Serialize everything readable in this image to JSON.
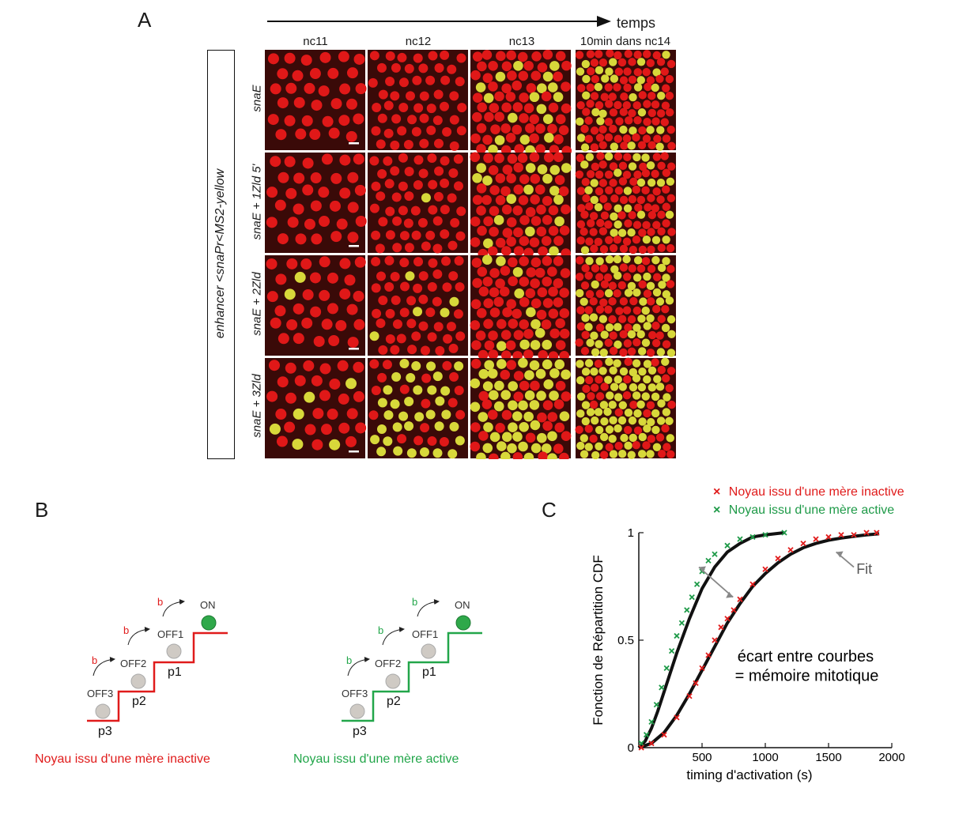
{
  "panel_a": {
    "letter": "A",
    "time_label": "temps",
    "columns": [
      "nc11",
      "nc12",
      "nc13",
      "10min dans nc14"
    ],
    "construct_label": "enhancer <snaPr<MS2-yellow",
    "rows": [
      {
        "label": "snaE",
        "active_fraction": [
          0.0,
          0.0,
          0.12,
          0.22
        ]
      },
      {
        "label": "snaE + 1Zld 5'",
        "active_fraction": [
          0.0,
          0.01,
          0.2,
          0.3
        ]
      },
      {
        "label": "snaE + 2Zld",
        "active_fraction": [
          0.01,
          0.06,
          0.18,
          0.45
        ]
      },
      {
        "label": "snaE + 3Zld",
        "active_fraction": [
          0.33,
          0.6,
          0.62,
          0.75
        ]
      }
    ],
    "colors": {
      "nucleus": "#e01818",
      "active": "#d8d83a",
      "background": "#3a0a08"
    }
  },
  "panel_b": {
    "letter": "B",
    "states": [
      "OFF3",
      "OFF2",
      "OFF1",
      "ON"
    ],
    "probabilities": [
      "p3",
      "p2",
      "p1"
    ],
    "rate": "b",
    "left_caption": "Noyau issu d'une mère inactive",
    "right_caption": "Noyau issu d'une mère active",
    "colors": {
      "inactive": "#e01b1b",
      "active": "#22a64a",
      "state_off": "#cfcac4",
      "state_on": "#2fa84a"
    }
  },
  "panel_c": {
    "letter": "C",
    "legend": [
      {
        "marker": "×",
        "label": "Noyau issu d'une mère inactive",
        "color": "#e01b1b"
      },
      {
        "marker": "×",
        "label": "Noyau issu d'une mère active",
        "color": "#1e9a48"
      }
    ],
    "fit_label": "Fit",
    "annotation_line1": "écart entre courbes",
    "annotation_line2": "= mémoire mitotique",
    "chart_data": {
      "type": "scatter",
      "xlabel": "timing d'activation (s)",
      "ylabel": "Fonction de Répartition CDF",
      "xlim": [
        0,
        2000
      ],
      "ylim": [
        0,
        1
      ],
      "xticks": [
        500,
        1000,
        1500,
        2000
      ],
      "yticks": [
        0,
        0.5,
        1
      ],
      "ytick_labels": [
        "0",
        "0.5",
        "1"
      ],
      "series": [
        {
          "name": "Noyau issu d'une mère active",
          "color": "#1e9a48",
          "x": [
            20,
            60,
            100,
            140,
            180,
            220,
            260,
            300,
            340,
            380,
            420,
            460,
            500,
            550,
            600,
            700,
            800,
            900,
            1000,
            1150
          ],
          "y": [
            0.02,
            0.06,
            0.12,
            0.2,
            0.28,
            0.37,
            0.45,
            0.52,
            0.58,
            0.64,
            0.7,
            0.76,
            0.82,
            0.87,
            0.9,
            0.94,
            0.97,
            0.98,
            0.99,
            1.0
          ]
        },
        {
          "name": "Noyau issu d'une mère inactive",
          "color": "#e01b1b",
          "x": [
            20,
            100,
            200,
            300,
            400,
            450,
            500,
            550,
            600,
            650,
            700,
            750,
            800,
            900,
            1000,
            1100,
            1200,
            1300,
            1400,
            1500,
            1600,
            1700,
            1800,
            1880
          ],
          "y": [
            0.0,
            0.02,
            0.06,
            0.14,
            0.24,
            0.3,
            0.37,
            0.43,
            0.5,
            0.56,
            0.6,
            0.64,
            0.69,
            0.76,
            0.83,
            0.88,
            0.92,
            0.95,
            0.97,
            0.98,
            0.99,
            0.99,
            1.0,
            1.0
          ]
        }
      ],
      "fit_curves": [
        {
          "name": "fit-active",
          "x": [
            0,
            50,
            100,
            150,
            200,
            250,
            300,
            350,
            400,
            450,
            500,
            600,
            700,
            800,
            900,
            1000,
            1150
          ],
          "y": [
            0.0,
            0.03,
            0.09,
            0.17,
            0.26,
            0.35,
            0.44,
            0.52,
            0.6,
            0.67,
            0.74,
            0.84,
            0.91,
            0.95,
            0.98,
            0.99,
            1.0
          ]
        },
        {
          "name": "fit-inactive",
          "x": [
            0,
            100,
            200,
            300,
            400,
            500,
            600,
            700,
            800,
            900,
            1000,
            1100,
            1200,
            1300,
            1400,
            1500,
            1600,
            1700,
            1800,
            1900
          ],
          "y": [
            0.0,
            0.02,
            0.07,
            0.15,
            0.25,
            0.36,
            0.47,
            0.58,
            0.67,
            0.75,
            0.81,
            0.86,
            0.9,
            0.93,
            0.95,
            0.965,
            0.975,
            0.983,
            0.99,
            0.995
          ]
        }
      ]
    }
  }
}
